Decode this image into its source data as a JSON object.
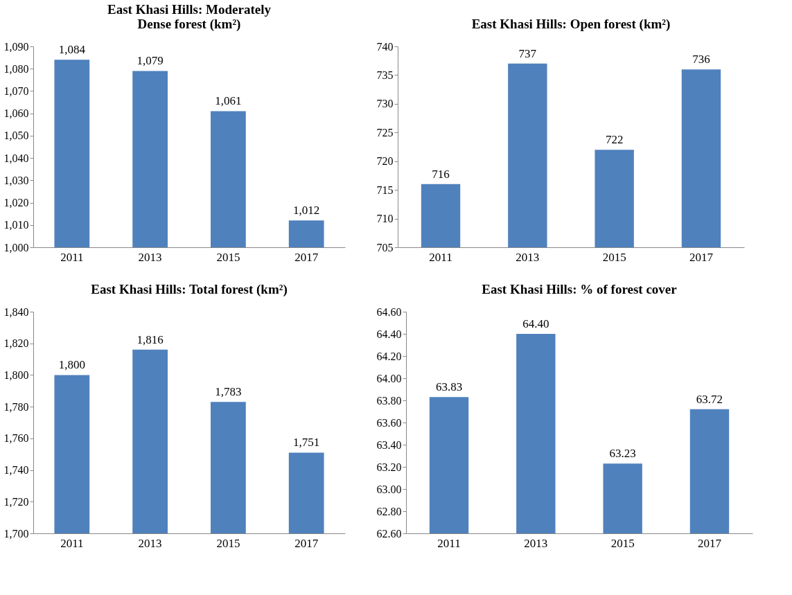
{
  "chart_data": [
    {
      "type": "bar",
      "title": "East Khasi Hills: Moderately Dense forest (km²)",
      "categories": [
        "2011",
        "2013",
        "2015",
        "2017"
      ],
      "values": [
        1084,
        1079,
        1061,
        1012
      ],
      "value_labels": [
        "1,084",
        "1,079",
        "1,061",
        "1,012"
      ],
      "color": "#4f81bd",
      "ylim": [
        1000,
        1090
      ],
      "yticks": [
        {
          "value": 1000,
          "label": "1,000"
        },
        {
          "value": 1010,
          "label": "1,010"
        },
        {
          "value": 1020,
          "label": "1,020"
        },
        {
          "value": 1030,
          "label": "1,030"
        },
        {
          "value": 1040,
          "label": "1,040"
        },
        {
          "value": 1050,
          "label": "1,050"
        },
        {
          "value": 1060,
          "label": "1,060"
        },
        {
          "value": 1070,
          "label": "1,070"
        },
        {
          "value": 1080,
          "label": "1,080"
        },
        {
          "value": 1090,
          "label": "1,090"
        }
      ],
      "grid": false
    },
    {
      "type": "bar",
      "title": "East Khasi Hills: Open forest (km²)",
      "categories": [
        "2011",
        "2013",
        "2015",
        "2017"
      ],
      "values": [
        716,
        737,
        722,
        736
      ],
      "data_labels": true,
      "color": "#4f81bd",
      "ylim": [
        705,
        740
      ],
      "yticks": [
        705,
        710,
        715,
        720,
        725,
        730,
        735,
        740
      ],
      "grid": false
    },
    {
      "type": "bar",
      "title": "East Khasi Hills: Total forest  (km²)",
      "categories": [
        "2011",
        "2013",
        "2015",
        "2017"
      ],
      "values": [
        1800,
        1816,
        1783,
        1751
      ],
      "value_labels": [
        "1,800",
        "1,816",
        "1,783",
        "1,751"
      ],
      "color": "#4f81bd",
      "ylim": [
        1700,
        1840
      ],
      "yticks": [
        {
          "value": 1700,
          "label": "1,700"
        },
        {
          "value": 1720,
          "label": "1,720"
        },
        {
          "value": 1740,
          "label": "1,740"
        },
        {
          "value": 1760,
          "label": "1,760"
        },
        {
          "value": 1780,
          "label": "1,780"
        },
        {
          "value": 1800,
          "label": "1,800"
        },
        {
          "value": 1820,
          "label": "1,820"
        },
        {
          "value": 1840,
          "label": "1,840"
        }
      ],
      "grid": false
    },
    {
      "type": "bar",
      "title": "East Khasi Hills: % of forest cover",
      "categories": [
        "2011",
        "2013",
        "2015",
        "2017"
      ],
      "values": [
        63.83,
        64.4,
        63.23,
        63.72
      ],
      "value_labels": [
        "63.83",
        "64.40",
        "63.23",
        "63.72"
      ],
      "color": "#4f81bd",
      "ylim": [
        62.6,
        64.6
      ],
      "yticks": [
        {
          "value": 62.6,
          "label": "62.60"
        },
        {
          "value": 62.8,
          "label": "62.80"
        },
        {
          "value": 63.0,
          "label": "63.00"
        },
        {
          "value": 63.2,
          "label": "63.20"
        },
        {
          "value": 63.4,
          "label": "63.40"
        },
        {
          "value": 63.6,
          "label": "63.60"
        },
        {
          "value": 63.8,
          "label": "63.80"
        },
        {
          "value": 64.0,
          "label": "64.00"
        },
        {
          "value": 64.2,
          "label": "64.20"
        },
        {
          "value": 64.4,
          "label": "64.40"
        },
        {
          "value": 64.6,
          "label": "64.60"
        }
      ],
      "grid": false
    }
  ]
}
